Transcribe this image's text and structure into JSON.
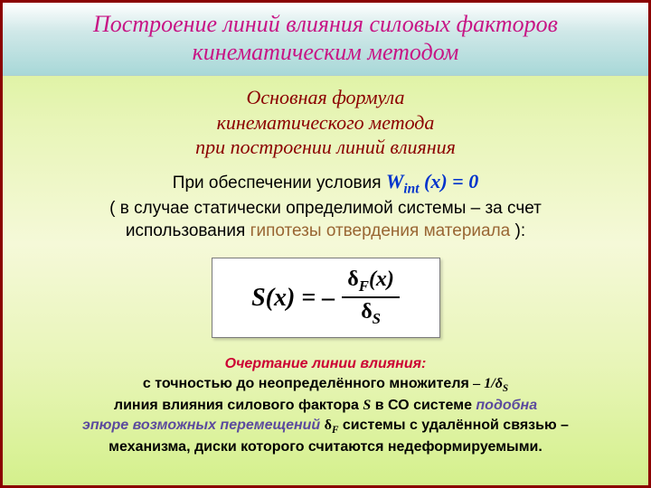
{
  "title": "Построение линий влияния силовых факторов кинематическим методом",
  "subtitle_l1": "Основная формула",
  "subtitle_l2": "кинематического метода",
  "subtitle_l3": "при построении линий влияния",
  "body_l1_a": "При обеспечении условия  ",
  "body_l1_b": "W",
  "body_l1_sub": "int",
  "body_l1_c": " (x) = 0",
  "body_l2_a": "( в случае статически определимой системы – за счет",
  "body_l2_b": "использования ",
  "body_l2_c": "гипотезы отвердения материала",
  "body_l2_d": " ):",
  "formula_left": "S(x) = –",
  "formula_num_a": "δ",
  "formula_num_sub": "F",
  "formula_num_b": "(x)",
  "formula_den_a": "δ",
  "formula_den_sub": "S",
  "out_title": "Очертание линии влияния:",
  "out_l1_a": "с точностью до неопределённого множителя  ",
  "out_l1_b": "– 1/δ",
  "out_l1_sub": "S",
  "out_l2_a": "линия влияния силового фактора ",
  "out_l2_b": "S",
  "out_l2_c": " в СО системе ",
  "out_l2_d": "подобна",
  "out_l3_a": "эпюре возможных перемещений ",
  "out_l3_b": "δ",
  "out_l3_sub": "F",
  "out_l3_c": " системы с удалённой связью –",
  "out_l4": "механизма, диски которого считаются недеформируемыми.",
  "colors": {
    "border": "#8B0000",
    "title_text": "#c71585",
    "subtitle_text": "#8B0000",
    "formula_cond": "#0033cc",
    "hypothesis": "#996633",
    "outline_title": "#cc0033",
    "purple": "#5b4a9e"
  }
}
